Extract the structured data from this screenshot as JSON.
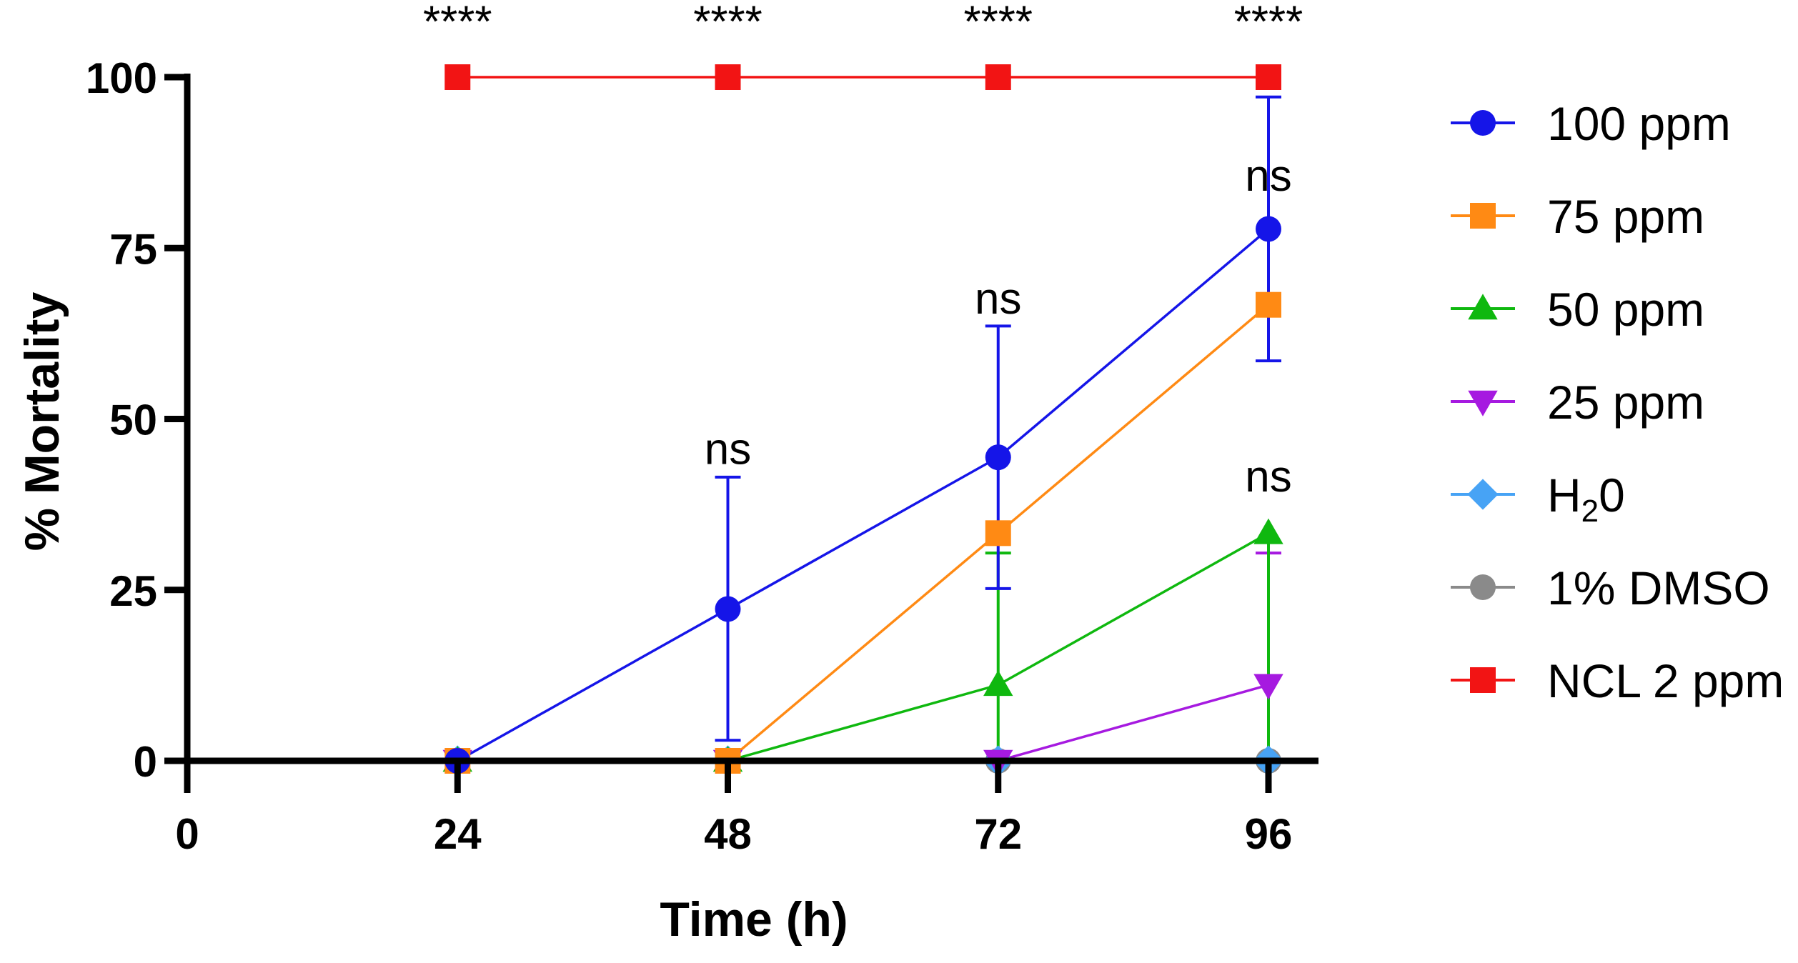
{
  "chart_data": {
    "type": "line",
    "title": "",
    "xlabel": "Time (h)",
    "ylabel": "% Mortality",
    "x_ticks": [
      "0",
      "24",
      "48",
      "72",
      "96"
    ],
    "y_ticks": [
      "0",
      "25",
      "50",
      "75",
      "100"
    ],
    "xlim": [
      0,
      96
    ],
    "ylim": [
      0,
      100
    ],
    "x": [
      24,
      48,
      72,
      96
    ],
    "series": [
      {
        "name": "100 ppm",
        "legend_main": "100 ppm",
        "legend_sub": "",
        "legend_tail": "",
        "color": "#1515e8",
        "marker": "circle",
        "values": [
          0,
          22.2,
          44.4,
          77.8
        ],
        "err_upper": [
          0,
          41.5,
          63.6,
          97.1
        ],
        "err_lower": [
          0,
          3,
          25.2,
          58.5
        ]
      },
      {
        "name": "75 ppm",
        "legend_main": "75 ppm",
        "legend_sub": "",
        "legend_tail": "",
        "color": "#ff8a14",
        "marker": "square",
        "values": [
          0,
          0,
          33.3,
          66.7
        ],
        "err_upper": [],
        "err_lower": []
      },
      {
        "name": "50 ppm",
        "legend_main": "50 ppm",
        "legend_sub": "",
        "legend_tail": "",
        "color": "#0fb80f",
        "marker": "triangle-up",
        "values": [
          0,
          0,
          11.1,
          33.3
        ],
        "err_upper": [
          0,
          0,
          30.4,
          0
        ],
        "err_lower": [
          0,
          0,
          0,
          0
        ]
      },
      {
        "name": "25 ppm",
        "legend_main": "25 ppm",
        "legend_sub": "",
        "legend_tail": "",
        "color": "#a61ae0",
        "marker": "triangle-down",
        "values": [
          0,
          0,
          0,
          11.1
        ],
        "err_upper": [
          0,
          0,
          0,
          30.4
        ],
        "err_lower": [
          0,
          0,
          0,
          0
        ]
      },
      {
        "name": "H20",
        "legend_main": "H",
        "legend_sub": "2",
        "legend_tail": "0",
        "color": "#47a3f5",
        "marker": "diamond",
        "values": [
          0,
          0,
          0,
          0
        ],
        "err_upper": [],
        "err_lower": []
      },
      {
        "name": "1% DMSO",
        "legend_main": " 1% DMSO",
        "legend_sub": "",
        "legend_tail": "",
        "color": "#8a8a8a",
        "marker": "circle",
        "values": [
          0,
          0,
          0,
          0
        ],
        "err_upper": [],
        "err_lower": []
      },
      {
        "name": "NCL 2 ppm",
        "legend_main": "NCL 2 ppm",
        "legend_sub": "",
        "legend_tail": "",
        "color": "#f21414",
        "marker": "square",
        "values": [
          100,
          100,
          100,
          100
        ],
        "err_upper": [],
        "err_lower": []
      }
    ],
    "annotations": [
      {
        "text": "****",
        "x": 24,
        "y": 108
      },
      {
        "text": "****",
        "x": 48,
        "y": 108
      },
      {
        "text": "****",
        "x": 72,
        "y": 108
      },
      {
        "text": "****",
        "x": 96,
        "y": 108
      },
      {
        "text": "ns",
        "x": 48,
        "y": 45.5
      },
      {
        "text": "ns",
        "x": 72,
        "y": 67.5
      },
      {
        "text": "ns",
        "x": 96,
        "y": 85.5
      },
      {
        "text": "ns",
        "x": 96,
        "y": 41.5
      }
    ],
    "legend_position": "right"
  }
}
